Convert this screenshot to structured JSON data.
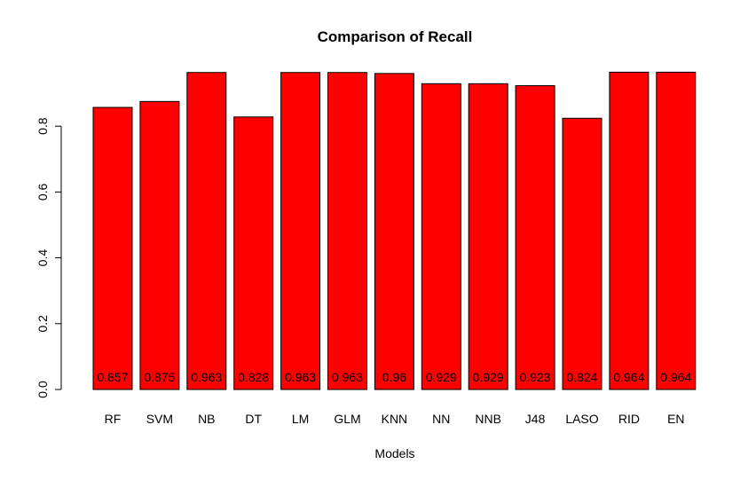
{
  "chart_data": {
    "type": "bar",
    "title": "Comparison of Recall",
    "xlabel": "Models",
    "ylabel": "",
    "categories": [
      "RF",
      "SVM",
      "NB",
      "DT",
      "LM",
      "GLM",
      "KNN",
      "NN",
      "NNB",
      "J48",
      "LASO",
      "RID",
      "EN"
    ],
    "values": [
      0.857,
      0.875,
      0.963,
      0.828,
      0.963,
      0.963,
      0.96,
      0.929,
      0.929,
      0.923,
      0.824,
      0.964,
      0.964
    ],
    "data_labels": [
      "0.857",
      "0.875",
      "0.963",
      "0.828",
      "0.963",
      "0.963",
      "0.96",
      "0.929",
      "0.929",
      "0.923",
      "0.824",
      "0.964",
      "0.964"
    ],
    "yticks": [
      0.0,
      0.2,
      0.4,
      0.6,
      0.8
    ],
    "ytick_labels": [
      "0.0",
      "0.2",
      "0.4",
      "0.6",
      "0.8"
    ],
    "ylim": [
      0,
      1.0
    ],
    "bar_color": "#ff0000",
    "grid": false,
    "legend": "none"
  }
}
